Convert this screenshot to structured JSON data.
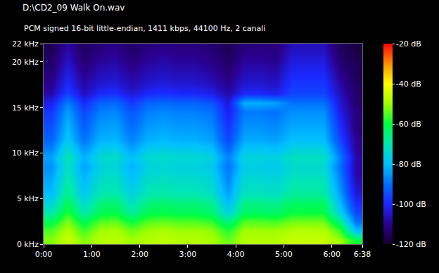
{
  "chart_data": {
    "type": "heatmap",
    "title": "D:\\CD2_09 Walk On.wav",
    "subtitle": "PCM signed 16-bit little-endian, 1411 kbps, 44100 Hz, 2 canali",
    "grid": false,
    "x": [
      10,
      30,
      50,
      70,
      90,
      110,
      130,
      150,
      170,
      190,
      210,
      230,
      250,
      270,
      290,
      310,
      330,
      350,
      370,
      390
    ],
    "y": [
      0.5,
      1.5,
      2.5,
      3.5,
      4.5,
      5.5,
      6.5,
      7.5,
      8.5,
      9.5,
      10.5,
      11.5,
      12.5,
      13.5,
      14.5,
      15.5,
      16.5,
      17.5,
      18.5,
      19.5,
      20.5,
      21.5
    ],
    "xlim": [
      0,
      398
    ],
    "xticks": [
      {
        "value": 0,
        "label": "0:00"
      },
      {
        "value": 60,
        "label": "1:00"
      },
      {
        "value": 120,
        "label": "2:00"
      },
      {
        "value": 180,
        "label": "3:00"
      },
      {
        "value": 240,
        "label": "4:00"
      },
      {
        "value": 300,
        "label": "5:00"
      },
      {
        "value": 360,
        "label": "6:00"
      },
      {
        "value": 398,
        "label": "6:38"
      }
    ],
    "ylim": [
      0,
      22
    ],
    "yticks": [
      {
        "value": 0,
        "label": "0 kHz"
      },
      {
        "value": 5,
        "label": "5 kHz"
      },
      {
        "value": 10,
        "label": "10 kHz"
      },
      {
        "value": 15,
        "label": "15 kHz"
      },
      {
        "value": 20,
        "label": "20 kHz"
      },
      {
        "value": 22,
        "label": "22 kHz"
      }
    ],
    "zlim": [
      -120,
      -20
    ],
    "zticks": [
      {
        "value": -20,
        "label": "-20 dB"
      },
      {
        "value": -40,
        "label": "-40 dB"
      },
      {
        "value": -60,
        "label": "-60 dB"
      },
      {
        "value": -80,
        "label": "-80 dB"
      },
      {
        "value": -100,
        "label": "-100 dB"
      },
      {
        "value": -120,
        "label": "-120 dB"
      }
    ],
    "cells": [
      [
        -52,
        -55,
        -62,
        -70,
        -75,
        -80,
        -82,
        -84,
        -86,
        -84,
        -88,
        -92,
        -94,
        -96,
        -98,
        -102,
        -108,
        -110,
        -112,
        -114,
        -115,
        -116
      ],
      [
        -46,
        -48,
        -52,
        -58,
        -62,
        -66,
        -68,
        -70,
        -72,
        -70,
        -74,
        -78,
        -80,
        -82,
        -84,
        -88,
        -96,
        -100,
        -102,
        -104,
        -106,
        -108
      ],
      [
        -52,
        -56,
        -62,
        -70,
        -74,
        -78,
        -80,
        -82,
        -84,
        -82,
        -86,
        -90,
        -92,
        -94,
        -96,
        -100,
        -106,
        -108,
        -110,
        -112,
        -114,
        -115
      ],
      [
        -48,
        -50,
        -55,
        -62,
        -65,
        -70,
        -72,
        -74,
        -76,
        -74,
        -78,
        -82,
        -84,
        -86,
        -88,
        -92,
        -100,
        -104,
        -106,
        -108,
        -110,
        -112
      ],
      [
        -47,
        -49,
        -54,
        -61,
        -64,
        -69,
        -71,
        -73,
        -75,
        -73,
        -77,
        -81,
        -83,
        -85,
        -87,
        -91,
        -99,
        -103,
        -105,
        -107,
        -109,
        -111
      ],
      [
        -50,
        -53,
        -60,
        -68,
        -72,
        -76,
        -78,
        -80,
        -82,
        -80,
        -84,
        -88,
        -90,
        -92,
        -94,
        -98,
        -104,
        -107,
        -109,
        -111,
        -113,
        -114
      ],
      [
        -48,
        -50,
        -55,
        -62,
        -65,
        -70,
        -72,
        -74,
        -76,
        -74,
        -78,
        -82,
        -84,
        -86,
        -88,
        -92,
        -100,
        -104,
        -106,
        -108,
        -110,
        -112
      ],
      [
        -47,
        -49,
        -54,
        -61,
        -64,
        -69,
        -71,
        -73,
        -75,
        -73,
        -77,
        -81,
        -83,
        -85,
        -87,
        -91,
        -99,
        -103,
        -105,
        -107,
        -109,
        -111
      ],
      [
        -48,
        -50,
        -55,
        -62,
        -65,
        -70,
        -72,
        -74,
        -76,
        -74,
        -78,
        -82,
        -84,
        -86,
        -88,
        -92,
        -100,
        -104,
        -106,
        -108,
        -110,
        -112
      ],
      [
        -48,
        -50,
        -55,
        -62,
        -65,
        -70,
        -72,
        -74,
        -76,
        -74,
        -78,
        -82,
        -84,
        -86,
        -88,
        -92,
        -100,
        -104,
        -106,
        -108,
        -110,
        -112
      ],
      [
        -49,
        -51,
        -57,
        -64,
        -67,
        -72,
        -74,
        -76,
        -78,
        -76,
        -80,
        -84,
        -86,
        -88,
        -90,
        -94,
        -102,
        -106,
        -108,
        -110,
        -112,
        -113
      ],
      [
        -54,
        -58,
        -66,
        -76,
        -80,
        -84,
        -86,
        -88,
        -90,
        -88,
        -92,
        -96,
        -98,
        -100,
        -102,
        -104,
        -108,
        -110,
        -112,
        -114,
        -115,
        -116
      ],
      [
        -48,
        -50,
        -55,
        -63,
        -66,
        -71,
        -73,
        -75,
        -77,
        -75,
        -79,
        -83,
        -85,
        -87,
        -89,
        -82,
        -100,
        -104,
        -106,
        -108,
        -110,
        -112
      ],
      [
        -48,
        -50,
        -55,
        -63,
        -66,
        -71,
        -73,
        -75,
        -77,
        -75,
        -79,
        -83,
        -85,
        -87,
        -89,
        -82,
        -100,
        -104,
        -106,
        -108,
        -110,
        -112
      ],
      [
        -48,
        -50,
        -56,
        -64,
        -67,
        -72,
        -74,
        -76,
        -78,
        -76,
        -80,
        -84,
        -86,
        -88,
        -90,
        -84,
        -102,
        -105,
        -107,
        -109,
        -111,
        -112
      ],
      [
        -46,
        -48,
        -53,
        -60,
        -63,
        -68,
        -70,
        -72,
        -74,
        -72,
        -76,
        -80,
        -82,
        -84,
        -86,
        -90,
        -96,
        -98,
        -100,
        -102,
        -104,
        -106
      ],
      [
        -46,
        -48,
        -53,
        -60,
        -63,
        -68,
        -70,
        -72,
        -74,
        -72,
        -76,
        -80,
        -82,
        -84,
        -86,
        -90,
        -96,
        -98,
        -100,
        -102,
        -104,
        -106
      ],
      [
        -46,
        -48,
        -53,
        -60,
        -63,
        -68,
        -70,
        -72,
        -74,
        -72,
        -76,
        -80,
        -82,
        -84,
        -86,
        -90,
        -96,
        -98,
        -100,
        -102,
        -104,
        -106
      ],
      [
        -50,
        -56,
        -66,
        -76,
        -80,
        -84,
        -86,
        -88,
        -90,
        -88,
        -92,
        -96,
        -98,
        -100,
        -102,
        -104,
        -106,
        -108,
        -110,
        -112,
        -114,
        -115
      ],
      [
        -60,
        -80,
        -90,
        -96,
        -100,
        -104,
        -106,
        -108,
        -108,
        -108,
        -110,
        -110,
        -112,
        -112,
        -112,
        -114,
        -114,
        -115,
        -116,
        -116,
        -117,
        -118
      ]
    ]
  }
}
